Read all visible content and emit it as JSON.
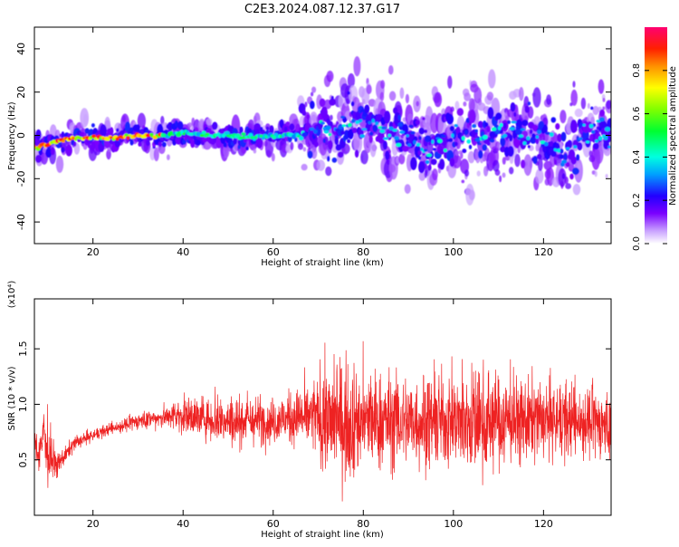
{
  "figure": {
    "title": "C2E3.2024.087.12.37.G17"
  },
  "chart_data": [
    {
      "type": "heatmap",
      "xlabel": "Height of straight line (km)",
      "ylabel": "Frequency (Hz)",
      "xlim": [
        7,
        135
      ],
      "ylim": [
        -50,
        50
      ],
      "xticks": [
        20,
        40,
        60,
        80,
        100,
        120
      ],
      "yticks": [
        -40,
        -20,
        0,
        20,
        40
      ],
      "colorbar": {
        "label": "Normalized spectral amplitude",
        "range": [
          0,
          1
        ],
        "ticks": [
          "0.0",
          "0.2",
          "0.4",
          "0.6",
          "0.8"
        ],
        "colormap": "rainbow"
      },
      "ridge": [
        {
          "x": 8,
          "y": -5
        },
        {
          "x": 12,
          "y": -3
        },
        {
          "x": 16,
          "y": -1
        },
        {
          "x": 20,
          "y": -1
        },
        {
          "x": 25,
          "y": -1
        },
        {
          "x": 30,
          "y": 0
        },
        {
          "x": 35,
          "y": 0
        },
        {
          "x": 40,
          "y": 1
        },
        {
          "x": 45,
          "y": 0
        },
        {
          "x": 50,
          "y": 0
        },
        {
          "x": 55,
          "y": -1
        },
        {
          "x": 60,
          "y": 0
        },
        {
          "x": 65,
          "y": 0
        },
        {
          "x": 70,
          "y": 3
        },
        {
          "x": 75,
          "y": 4
        },
        {
          "x": 80,
          "y": 5
        },
        {
          "x": 85,
          "y": 3
        },
        {
          "x": 90,
          "y": 1
        },
        {
          "x": 95,
          "y": -7
        },
        {
          "x": 100,
          "y": 1
        },
        {
          "x": 105,
          "y": 0
        },
        {
          "x": 110,
          "y": 2
        },
        {
          "x": 115,
          "y": 3
        },
        {
          "x": 120,
          "y": -2
        },
        {
          "x": 125,
          "y": -10
        },
        {
          "x": 130,
          "y": 3
        },
        {
          "x": 135,
          "y": 0
        }
      ]
    },
    {
      "type": "line",
      "xlabel": "Height of straight line (km)",
      "ylabel": "SNR (10 * v/v)",
      "y_multiplier": "(x10⁴)",
      "xlim": [
        7,
        135
      ],
      "ylim": [
        0,
        1.95
      ],
      "xticks": [
        20,
        40,
        60,
        80,
        100,
        120
      ],
      "yticks": [
        "0.5",
        "1.0",
        "1.5"
      ],
      "series": [
        {
          "color": "#ee2222",
          "envelope": [
            {
              "x": 7,
              "mean": 0.65,
              "amp": 0.15
            },
            {
              "x": 8,
              "mean": 0.55,
              "amp": 0.2
            },
            {
              "x": 9,
              "mean": 0.75,
              "amp": 0.25
            },
            {
              "x": 10,
              "mean": 0.55,
              "amp": 0.35
            },
            {
              "x": 12,
              "mean": 0.45,
              "amp": 0.12
            },
            {
              "x": 14,
              "mean": 0.55,
              "amp": 0.08
            },
            {
              "x": 16,
              "mean": 0.65,
              "amp": 0.08
            },
            {
              "x": 20,
              "mean": 0.72,
              "amp": 0.06
            },
            {
              "x": 24,
              "mean": 0.78,
              "amp": 0.06
            },
            {
              "x": 30,
              "mean": 0.85,
              "amp": 0.08
            },
            {
              "x": 35,
              "mean": 0.88,
              "amp": 0.1
            },
            {
              "x": 40,
              "mean": 0.9,
              "amp": 0.18
            },
            {
              "x": 50,
              "mean": 0.85,
              "amp": 0.25
            },
            {
              "x": 60,
              "mean": 0.85,
              "amp": 0.22
            },
            {
              "x": 68,
              "mean": 0.9,
              "amp": 0.3
            },
            {
              "x": 72,
              "mean": 0.85,
              "amp": 0.55
            },
            {
              "x": 76,
              "mean": 0.85,
              "amp": 0.6
            },
            {
              "x": 80,
              "mean": 0.85,
              "amp": 0.5
            },
            {
              "x": 90,
              "mean": 0.85,
              "amp": 0.45
            },
            {
              "x": 100,
              "mean": 0.85,
              "amp": 0.45
            },
            {
              "x": 105,
              "mean": 0.85,
              "amp": 0.55
            },
            {
              "x": 110,
              "mean": 0.85,
              "amp": 0.45
            },
            {
              "x": 120,
              "mean": 0.85,
              "amp": 0.4
            },
            {
              "x": 130,
              "mean": 0.85,
              "amp": 0.35
            },
            {
              "x": 135,
              "mean": 0.8,
              "amp": 0.3
            }
          ]
        }
      ]
    }
  ]
}
